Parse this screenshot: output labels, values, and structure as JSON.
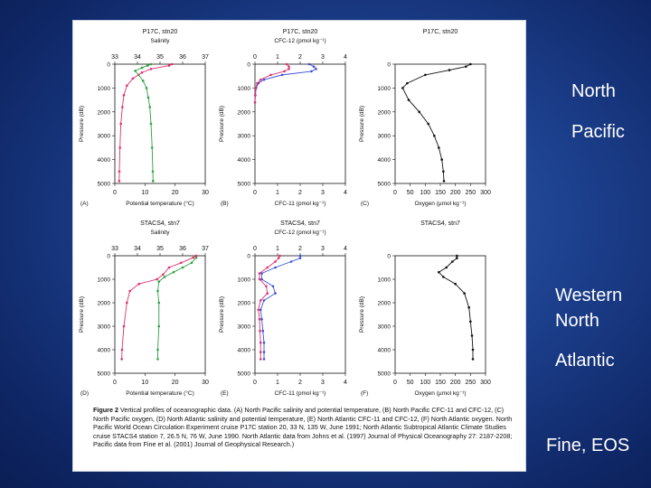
{
  "slide": {
    "labels": {
      "north": "North",
      "pacific": "Pacific",
      "western": "Western",
      "north2": "North",
      "atlantic": "Atlantic",
      "citation": "Fine, EOS"
    }
  },
  "figure": {
    "caption_head": "Figure 2",
    "caption_text": "Vertical profiles of oceanographic data. (A) North Pacific salinity and potential temperature, (B) North Pacific CFC-11 and CFC-12, (C) North Pacific oxygen, (D) North Atlantic salinity and potential temperature, (E) North Atlantic CFC-11 and CFC-12, (F) North Atlantic oxygen. North Pacific World Ocean Circulation Experiment cruise P17C station 20, 33 N, 135 W, June 1991; North Atlantic Subtropical Atlantic Climate Studies cruise STACS4 station 7, 26.5 N, 76 W, June 1990. North Atlantic data from Johns et al. (1997) Journal of Physical Oceanography 27: 2187-2208; Pacific data from Fine et al. (2001) Journal of Geophysical Research.)"
  },
  "chart_data": [
    {
      "panel": "(A)",
      "type": "line",
      "title": "P17C, stn20",
      "top_axis_label": "Salinity",
      "top_ticks": [
        "33",
        "34",
        "35",
        "36",
        "37"
      ],
      "top_range": [
        33,
        37
      ],
      "xlabel": "Potential temperature (°C)",
      "x_ticks": [
        "0",
        "10",
        "20",
        "30"
      ],
      "x_range": [
        0,
        30
      ],
      "ylabel": "Pressure (dB)",
      "y_ticks": [
        "0",
        "1000",
        "2000",
        "3000",
        "4000",
        "5000"
      ],
      "ylim": [
        0,
        5000
      ],
      "series": [
        {
          "color": "#2ea043",
          "axis": "top",
          "points": [
            [
              34.6,
              0
            ],
            [
              34.45,
              60
            ],
            [
              34.2,
              150
            ],
            [
              33.9,
              280
            ],
            [
              34.05,
              450
            ],
            [
              34.25,
              700
            ],
            [
              34.4,
              1000
            ],
            [
              34.48,
              1400
            ],
            [
              34.55,
              1800
            ],
            [
              34.6,
              2500
            ],
            [
              34.65,
              3500
            ],
            [
              34.68,
              4500
            ],
            [
              34.69,
              4900
            ]
          ]
        },
        {
          "color": "#e0306a",
          "axis": "bottom",
          "points": [
            [
              19,
              0
            ],
            [
              18,
              60
            ],
            [
              12,
              200
            ],
            [
              9,
              350
            ],
            [
              6,
              600
            ],
            [
              4,
              900
            ],
            [
              3,
              1300
            ],
            [
              2.5,
              1800
            ],
            [
              2,
              2500
            ],
            [
              1.7,
              3500
            ],
            [
              1.5,
              4500
            ],
            [
              1.45,
              4900
            ]
          ]
        }
      ]
    },
    {
      "panel": "(B)",
      "type": "line",
      "title": "P17C, stn20",
      "top_axis_label": "CFC-12 (pmol kg⁻¹)",
      "top_ticks": [
        "0",
        "1",
        "2",
        "3",
        "4"
      ],
      "top_range": [
        0,
        4
      ],
      "xlabel": "CFC-11 (pmol kg⁻¹)",
      "x_ticks": [
        "0",
        "1",
        "2",
        "3",
        "4"
      ],
      "x_range": [
        0,
        4
      ],
      "ylabel": "Pressure (dB)",
      "y_ticks": [
        "0",
        "1000",
        "2000",
        "3000",
        "4000",
        "5000"
      ],
      "ylim": [
        0,
        5000
      ],
      "series": [
        {
          "color": "#3a4fd8",
          "points": [
            [
              2.4,
              0
            ],
            [
              2.6,
              100
            ],
            [
              2.7,
              200
            ],
            [
              2.5,
              300
            ],
            [
              1.2,
              450
            ],
            [
              0.4,
              650
            ],
            [
              0.15,
              800
            ],
            [
              0.05,
              1000
            ],
            [
              0.02,
              1300
            ],
            [
              0,
              1600
            ]
          ]
        },
        {
          "color": "#e0306a",
          "points": [
            [
              1.4,
              0
            ],
            [
              1.5,
              100
            ],
            [
              1.5,
              200
            ],
            [
              1.3,
              300
            ],
            [
              0.7,
              450
            ],
            [
              0.25,
              650
            ],
            [
              0.1,
              800
            ],
            [
              0.03,
              1000
            ],
            [
              0.01,
              1300
            ],
            [
              0,
              1600
            ]
          ]
        }
      ]
    },
    {
      "panel": "(C)",
      "type": "line",
      "title": "P17C, stn20",
      "xlabel": "Oxygen (µmol kg⁻¹)",
      "x_ticks": [
        "0",
        "50",
        "100",
        "150",
        "200",
        "250",
        "300"
      ],
      "x_range": [
        0,
        300
      ],
      "ylabel": "Pressure (dB)",
      "y_ticks": [
        "0",
        "1000",
        "2000",
        "3000",
        "4000",
        "5000"
      ],
      "ylim": [
        0,
        5000
      ],
      "series": [
        {
          "color": "#111111",
          "points": [
            [
              250,
              0
            ],
            [
              235,
              100
            ],
            [
              180,
              250
            ],
            [
              100,
              450
            ],
            [
              40,
              800
            ],
            [
              25,
              1000
            ],
            [
              45,
              1500
            ],
            [
              80,
              2000
            ],
            [
              110,
              2500
            ],
            [
              130,
              3000
            ],
            [
              145,
              3500
            ],
            [
              155,
              4000
            ],
            [
              160,
              4500
            ],
            [
              162,
              4900
            ]
          ]
        }
      ]
    },
    {
      "panel": "(D)",
      "type": "line",
      "title": "STACS4, stn7",
      "top_axis_label": "Salinity",
      "top_ticks": [
        "33",
        "34",
        "35",
        "36",
        "37"
      ],
      "top_range": [
        33,
        37
      ],
      "xlabel": "Potential temperature (°C)",
      "x_ticks": [
        "0",
        "10",
        "20",
        "30"
      ],
      "x_range": [
        0,
        30
      ],
      "ylabel": "Pressure (dB)",
      "y_ticks": [
        "0",
        "1000",
        "2000",
        "3000",
        "4000",
        "5000"
      ],
      "ylim": [
        0,
        5000
      ],
      "series": [
        {
          "color": "#2ea043",
          "axis": "top",
          "points": [
            [
              36.6,
              0
            ],
            [
              36.6,
              80
            ],
            [
              36.4,
              300
            ],
            [
              36,
              500
            ],
            [
              35.6,
              700
            ],
            [
              35.2,
              900
            ],
            [
              34.95,
              1100
            ],
            [
              34.9,
              1500
            ],
            [
              34.95,
              2000
            ],
            [
              34.95,
              3000
            ],
            [
              34.9,
              4000
            ],
            [
              34.9,
              4400
            ]
          ]
        },
        {
          "color": "#e0306a",
          "axis": "bottom",
          "points": [
            [
              27,
              0
            ],
            [
              26,
              80
            ],
            [
              22,
              300
            ],
            [
              18,
              500
            ],
            [
              16,
              800
            ],
            [
              14,
              1000
            ],
            [
              8,
              1200
            ],
            [
              5,
              1500
            ],
            [
              4,
              2000
            ],
            [
              3,
              3000
            ],
            [
              2.4,
              4000
            ],
            [
              2.3,
              4400
            ]
          ]
        }
      ]
    },
    {
      "panel": "(E)",
      "type": "line",
      "title": "STACS4, stn7",
      "top_axis_label": "CFC-12 (pmol kg⁻¹)",
      "top_ticks": [
        "0",
        "1",
        "2",
        "3",
        "4"
      ],
      "top_range": [
        0,
        4
      ],
      "xlabel": "CFC-11 (pmol kg⁻¹)",
      "x_ticks": [
        "0",
        "1",
        "2",
        "3",
        "4"
      ],
      "x_range": [
        0,
        4
      ],
      "ylabel": "Pressure (dB)",
      "y_ticks": [
        "0",
        "1000",
        "2000",
        "3000",
        "4000",
        "5000"
      ],
      "ylim": [
        0,
        5000
      ],
      "series": [
        {
          "color": "#3a4fd8",
          "points": [
            [
              2.0,
              0
            ],
            [
              2.0,
              100
            ],
            [
              1.6,
              250
            ],
            [
              0.9,
              500
            ],
            [
              0.3,
              750
            ],
            [
              0.3,
              1000
            ],
            [
              0.8,
              1300
            ],
            [
              0.9,
              1600
            ],
            [
              0.4,
              1900
            ],
            [
              0.25,
              2300
            ],
            [
              0.3,
              2700
            ],
            [
              0.35,
              3200
            ],
            [
              0.4,
              3700
            ],
            [
              0.4,
              4100
            ],
            [
              0.4,
              4400
            ]
          ]
        },
        {
          "color": "#e0306a",
          "points": [
            [
              1.1,
              0
            ],
            [
              1.05,
              100
            ],
            [
              0.9,
              250
            ],
            [
              0.55,
              500
            ],
            [
              0.2,
              750
            ],
            [
              0.2,
              1000
            ],
            [
              0.5,
              1300
            ],
            [
              0.55,
              1600
            ],
            [
              0.25,
              1900
            ],
            [
              0.15,
              2300
            ],
            [
              0.2,
              2700
            ],
            [
              0.22,
              3200
            ],
            [
              0.25,
              3700
            ],
            [
              0.25,
              4100
            ],
            [
              0.25,
              4400
            ]
          ]
        }
      ]
    },
    {
      "panel": "(F)",
      "type": "line",
      "title": "STACS4, stn7",
      "xlabel": "Oxygen (µmol kg⁻¹)",
      "x_ticks": [
        "0",
        "50",
        "100",
        "150",
        "200",
        "250",
        "300"
      ],
      "x_range": [
        0,
        300
      ],
      "ylabel": "Pressure (dB)",
      "y_ticks": [
        "0",
        "1000",
        "2000",
        "3000",
        "4000",
        "5000"
      ],
      "ylim": [
        0,
        5000
      ],
      "series": [
        {
          "color": "#111111",
          "points": [
            [
              205,
              0
            ],
            [
              205,
              100
            ],
            [
              190,
              250
            ],
            [
              170,
              500
            ],
            [
              145,
              700
            ],
            [
              160,
              900
            ],
            [
              200,
              1200
            ],
            [
              230,
              1600
            ],
            [
              245,
              2200
            ],
            [
              250,
              2800
            ],
            [
              255,
              3400
            ],
            [
              258,
              4000
            ],
            [
              258,
              4400
            ]
          ]
        }
      ]
    }
  ]
}
